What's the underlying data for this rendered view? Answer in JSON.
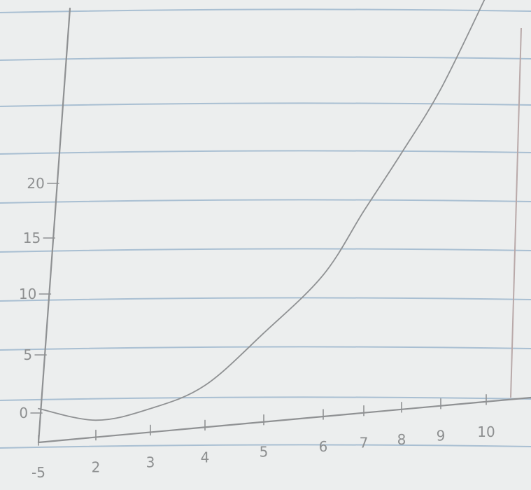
{
  "chart_data": {
    "type": "line",
    "title": "",
    "xlabel": "",
    "ylabel": "",
    "x_tick_labels": [
      "-5",
      "2",
      "3",
      "4",
      "5",
      "6",
      "7",
      "8",
      "9",
      "10"
    ],
    "y_tick_labels": [
      "0",
      "5",
      "10",
      "15",
      "20"
    ],
    "ylim": [
      0,
      36
    ],
    "grid": false,
    "series": [
      {
        "x": [
          -5,
          2,
          3,
          4,
          5,
          6,
          7,
          8,
          9,
          10
        ],
        "y": [
          0.5,
          -0.5,
          0.5,
          2.5,
          7,
          12,
          17.5,
          22.5,
          28,
          36
        ]
      }
    ]
  },
  "colors": {
    "paper": "#eceeee",
    "rule_line": "#a9bfd2",
    "margin_line": "#b9a9a9",
    "pencil": "#8f9193"
  }
}
